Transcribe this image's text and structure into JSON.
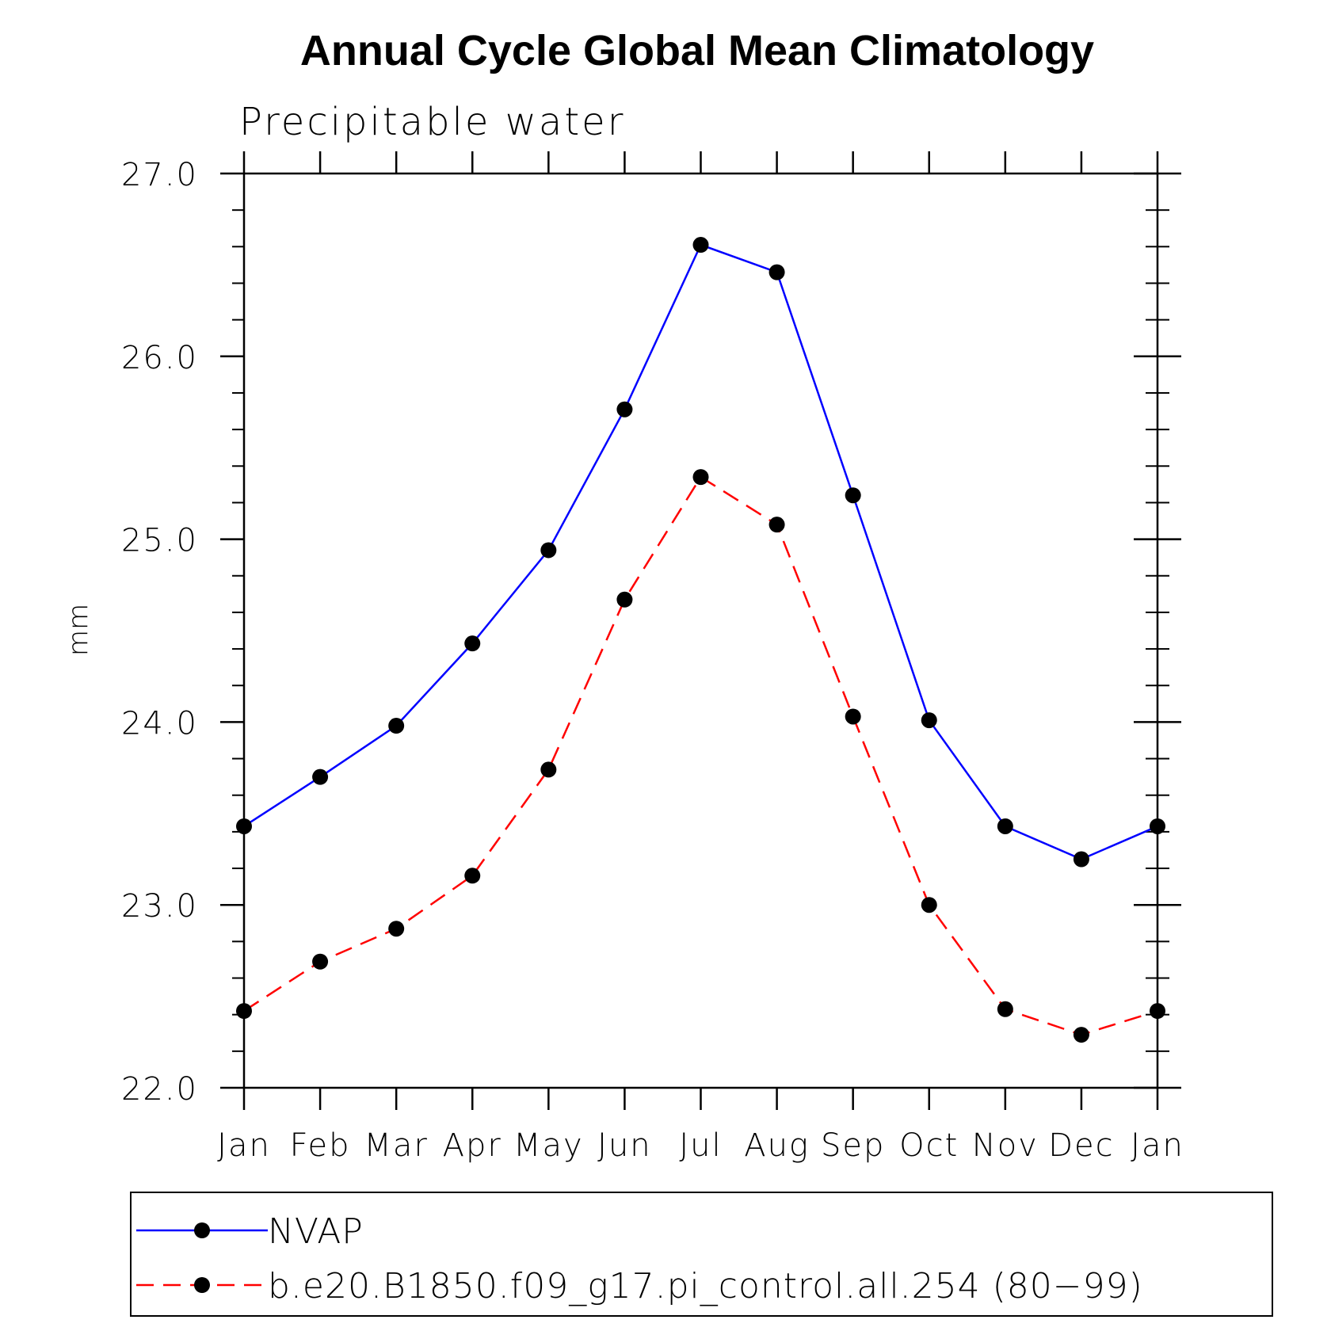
{
  "chart_data": {
    "type": "line",
    "title": "Annual Cycle Global Mean Climatology",
    "subtitle": "Precipitable water",
    "ylabel": "mm",
    "xlabel": "",
    "categories": [
      "Jan",
      "Feb",
      "Mar",
      "Apr",
      "May",
      "Jun",
      "Jul",
      "Aug",
      "Sep",
      "Oct",
      "Nov",
      "Dec",
      "Jan"
    ],
    "ylim": [
      22.0,
      27.0
    ],
    "yticks": [
      "22.0",
      "23.0",
      "24.0",
      "25.0",
      "26.0",
      "27.0"
    ],
    "grid": false,
    "legend_position": "bottom",
    "series": [
      {
        "name": "NVAP",
        "color": "#0000ff",
        "line_style": "solid",
        "marker": "filled-circle",
        "values": [
          23.43,
          23.7,
          23.98,
          24.43,
          24.94,
          25.71,
          26.61,
          26.46,
          25.24,
          24.01,
          23.43,
          23.25,
          23.43
        ]
      },
      {
        "name": "b.e20.B1850.f09_g17.pi_control.all.254 (80−99)",
        "color": "#ff0000",
        "line_style": "dashed",
        "marker": "filled-circle",
        "values": [
          22.42,
          22.69,
          22.87,
          23.16,
          23.74,
          24.67,
          25.34,
          25.08,
          24.03,
          23.0,
          22.43,
          22.29,
          22.42
        ]
      }
    ]
  }
}
